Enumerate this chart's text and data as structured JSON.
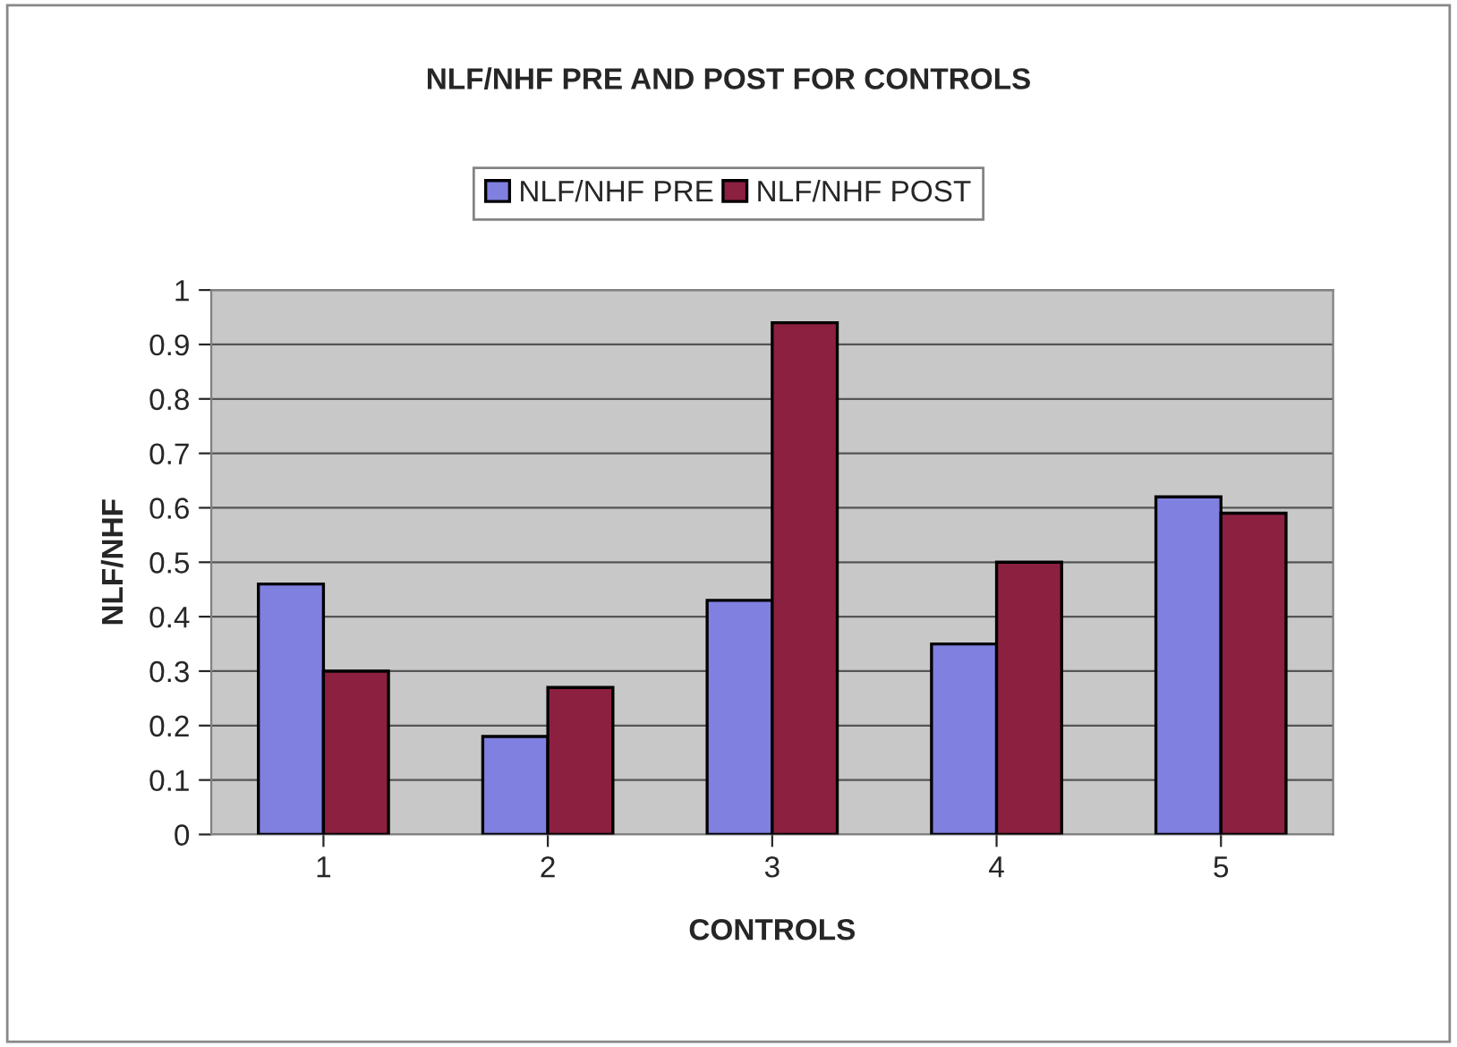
{
  "chart_data": {
    "type": "bar",
    "title": "NLF/NHF PRE AND POST FOR CONTROLS",
    "xlabel": "CONTROLS",
    "ylabel": "NLF/NHF",
    "categories": [
      "1",
      "2",
      "3",
      "4",
      "5"
    ],
    "series": [
      {
        "name": "NLF/NHF PRE",
        "color": "#8080e0",
        "values": [
          0.46,
          0.18,
          0.43,
          0.35,
          0.62
        ]
      },
      {
        "name": "NLF/NHF POST",
        "color": "#8c2040",
        "values": [
          0.3,
          0.27,
          0.94,
          0.5,
          0.59
        ]
      }
    ],
    "ylim": [
      0,
      1
    ],
    "yticks": [
      0,
      0.1,
      0.2,
      0.3,
      0.4,
      0.5,
      0.6,
      0.7,
      0.8,
      0.9,
      1
    ],
    "grid": "y",
    "legend": "top"
  }
}
